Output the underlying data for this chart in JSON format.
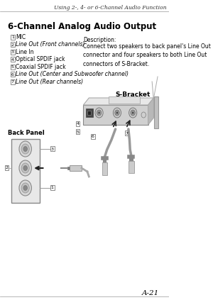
{
  "page_header": "Using 2-, 4- or 6-Channel Audio Function",
  "section_title": "6-Channel Analog Audio Output",
  "list_items": [
    {
      "num": "1",
      "text": "MIC",
      "italic": false
    },
    {
      "num": "2",
      "text": "Line Out (Front channels)",
      "italic": true
    },
    {
      "num": "3",
      "text": "Line In",
      "italic": false
    },
    {
      "num": "4",
      "text": "Optical SPDIF jack",
      "italic": false
    },
    {
      "num": "5",
      "text": "Coaxial SPDIF jack",
      "italic": false
    },
    {
      "num": "6",
      "text": "Line Out (Center and Subwoofer channel)",
      "italic": true
    },
    {
      "num": "7",
      "text": "Line Out (Rear channels)",
      "italic": true
    }
  ],
  "description_title": "Description:",
  "description_text": "Connect two speakers to back panel's Line Out\nconnector and four speakers to both Line Out\nconnectors of S-Bracket.",
  "sbracket_label": "S-Bracket",
  "backpanel_label": "Back Panel",
  "page_number": "A-21",
  "bg_color": "#ffffff",
  "text_color": "#000000",
  "gray_light": "#dddddd",
  "gray_mid": "#aaaaaa",
  "gray_dark": "#666666",
  "box_edge": "#888888"
}
